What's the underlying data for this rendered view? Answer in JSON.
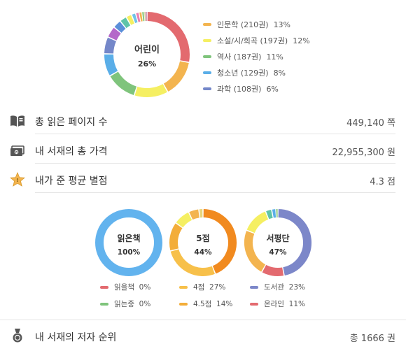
{
  "genre": {
    "center_label": "어린이",
    "center_value": "26%",
    "legend": [
      {
        "label": "인문학 (210권)",
        "pct": "13%",
        "color": "#f3b44f"
      },
      {
        "label": "소설/시/희곡 (197권)",
        "pct": "12%",
        "color": "#f5ef62"
      },
      {
        "label": "역사 (187권)",
        "pct": "11%",
        "color": "#7fc47c"
      },
      {
        "label": "청소년 (129권)",
        "pct": "8%",
        "color": "#5aaee8"
      },
      {
        "label": "과학 (108권)",
        "pct": "6%",
        "color": "#7487c9"
      }
    ],
    "chart_data": {
      "type": "pie",
      "segments": [
        {
          "name": "어린이",
          "value": 26,
          "color": "#e36a6f"
        },
        {
          "name": "인문학",
          "value": 13,
          "color": "#f3b44f"
        },
        {
          "name": "소설/시/희곡",
          "value": 12,
          "color": "#f5ef62"
        },
        {
          "name": "역사",
          "value": 11,
          "color": "#7fc47c"
        },
        {
          "name": "청소년",
          "value": 8,
          "color": "#5aaee8"
        },
        {
          "name": "과학",
          "value": 6,
          "color": "#7487c9"
        },
        {
          "name": "",
          "value": 4,
          "color": "#b468c9"
        },
        {
          "name": "",
          "value": 3,
          "color": "#5b8fd9"
        },
        {
          "name": "",
          "value": 2.5,
          "color": "#5fc4a8"
        },
        {
          "name": "",
          "value": 2,
          "color": "#f5ef62"
        },
        {
          "name": "",
          "value": 1.5,
          "color": "#6fc3e8"
        },
        {
          "name": "",
          "value": 1.2,
          "color": "#e97fb0"
        },
        {
          "name": "",
          "value": 1,
          "color": "#f3b44f"
        },
        {
          "name": "",
          "value": 0.8,
          "color": "#8bc97c"
        },
        {
          "name": "",
          "value": 0.6,
          "color": "#d9c4a0"
        },
        {
          "name": "",
          "value": 0.4,
          "color": "#c07bb0"
        }
      ]
    }
  },
  "stats": [
    {
      "label": "총 읽은 페이지 수",
      "value": "449,140 쪽",
      "icon": "open-book-icon"
    },
    {
      "label": "내 서재의 총 가격",
      "value": "22,955,300 원",
      "icon": "money-icon"
    },
    {
      "label": "내가 준 평균 별점",
      "value": "4.3 점",
      "icon": "star-icon"
    }
  ],
  "donuts": [
    {
      "center_label": "읽은책",
      "center_value": "100%",
      "chart_data": {
        "type": "pie",
        "segments": [
          {
            "name": "읽은책",
            "value": 100,
            "color": "#62b3ee"
          }
        ]
      }
    },
    {
      "center_label": "5점",
      "center_value": "44%",
      "chart_data": {
        "type": "pie",
        "segments": [
          {
            "name": "5점",
            "value": 44,
            "color": "#f18a1f"
          },
          {
            "name": "4점",
            "value": 27,
            "color": "#f7c04a"
          },
          {
            "name": "4.5점",
            "value": 14,
            "color": "#f3ad39"
          },
          {
            "name": "",
            "value": 8,
            "color": "#f5ef62"
          },
          {
            "name": "",
            "value": 5,
            "color": "#f3b44f"
          },
          {
            "name": "",
            "value": 2,
            "color": "#e8d57a"
          }
        ]
      }
    },
    {
      "center_label": "서평단",
      "center_value": "47%",
      "chart_data": {
        "type": "pie",
        "segments": [
          {
            "name": "서평단",
            "value": 47,
            "color": "#7c87c9"
          },
          {
            "name": "온라인",
            "value": 11,
            "color": "#e36a6f"
          },
          {
            "name": "도서관",
            "value": 23,
            "color": "#f3b44f"
          },
          {
            "name": "",
            "value": 13,
            "color": "#f5ef62"
          },
          {
            "name": "",
            "value": 3,
            "color": "#5fc4a8"
          },
          {
            "name": "",
            "value": 2,
            "color": "#5aaee8"
          },
          {
            "name": "",
            "value": 1,
            "color": "#8bc97c"
          }
        ]
      }
    }
  ],
  "donut_legend": [
    {
      "label": "읽을책",
      "pct": "0%",
      "color": "#e36a6f"
    },
    {
      "label": "4점",
      "pct": "27%",
      "color": "#f7c04a"
    },
    {
      "label": "도서관",
      "pct": "23%",
      "color": "#7c87c9"
    },
    {
      "label": "읽는중",
      "pct": "0%",
      "color": "#7fc47c"
    },
    {
      "label": "4.5점",
      "pct": "14%",
      "color": "#f3ad39"
    },
    {
      "label": "온라인",
      "pct": "11%",
      "color": "#e36a6f"
    }
  ],
  "author_rank": {
    "label": "내 서재의 저자 순위",
    "value": "총 1666 권",
    "icon": "medal-icon"
  }
}
